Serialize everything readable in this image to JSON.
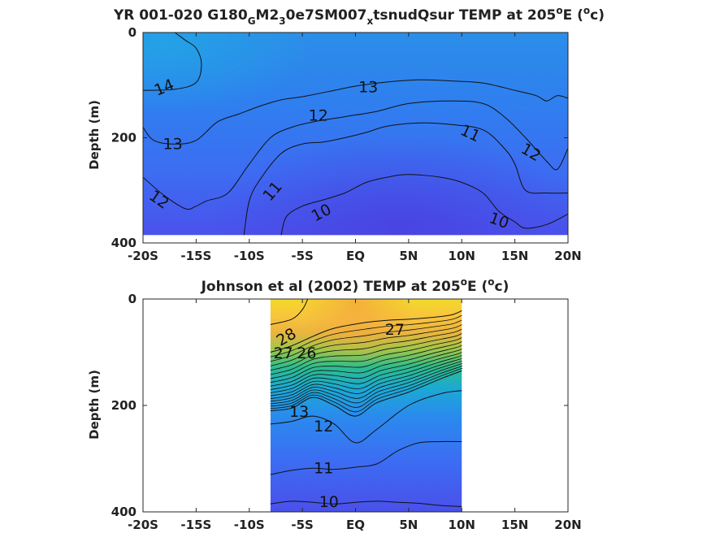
{
  "chart_data": [
    {
      "type": "heatmap",
      "title": {
        "pre": "YR 001-020 G180",
        "sub1": "G",
        "mid1": "M2",
        "sub2": "3",
        "mid2": "0e7SM007",
        "sub3": "x",
        "post1": "tsnudQsur TEMP at 205",
        "sup1": "o",
        "post2": "E (",
        "sup2": "o",
        "post3": "c)"
      },
      "ylabel": "Depth (m)",
      "xlim": [
        -20,
        20
      ],
      "ylim": [
        0,
        400
      ],
      "y_reversed": true,
      "x_ticks": [
        "-20S",
        "-15S",
        "-10S",
        "-5S",
        "EQ",
        "5N",
        "10N",
        "15N",
        "20N"
      ],
      "y_ticks": [
        "0",
        "200",
        "400"
      ],
      "data_extent": {
        "lat": [
          -20,
          20
        ],
        "depth": [
          0,
          385
        ]
      },
      "contours": [
        {
          "level": 14,
          "label": "14",
          "points": [
            [
              -20,
              110
            ],
            [
              -17,
              108
            ],
            [
              -15,
              95
            ],
            [
              -14.5,
              60
            ],
            [
              -15,
              30
            ],
            [
              -16,
              15
            ],
            [
              -17,
              0
            ]
          ]
        },
        {
          "level": 13,
          "label": "13",
          "points": [
            [
              -20,
              180
            ],
            [
              -19,
              205
            ],
            [
              -17,
              212
            ],
            [
              -15,
              205
            ],
            [
              -13,
              170
            ],
            [
              -11,
              155
            ],
            [
              -9,
              140
            ],
            [
              -7,
              128
            ],
            [
              -5,
              122
            ],
            [
              -2,
              110
            ],
            [
              0,
              102
            ],
            [
              3,
              94
            ],
            [
              6,
              90
            ],
            [
              9,
              92
            ],
            [
              12,
              96
            ],
            [
              15,
              110
            ],
            [
              17,
              120
            ],
            [
              18,
              130
            ],
            [
              19,
              120
            ],
            [
              20,
              125
            ]
          ]
        },
        {
          "level": 12,
          "label": "12",
          "points": [
            [
              -20,
              275
            ],
            [
              -18,
              310
            ],
            [
              -16,
              335
            ],
            [
              -15,
              330
            ],
            [
              -14,
              320
            ],
            [
              -12,
              305
            ],
            [
              -10,
              250
            ],
            [
              -8,
              200
            ],
            [
              -6,
              180
            ],
            [
              -4,
              170
            ],
            [
              -1,
              160
            ],
            [
              2,
              150
            ],
            [
              5,
              135
            ],
            [
              9,
              130
            ],
            [
              12,
              135
            ],
            [
              14,
              160
            ],
            [
              16,
              200
            ],
            [
              18,
              245
            ],
            [
              19,
              260
            ],
            [
              20,
              220
            ]
          ]
        },
        {
          "level": 11,
          "label": "11",
          "points": [
            [
              -10.5,
              385
            ],
            [
              -10,
              320
            ],
            [
              -9,
              280
            ],
            [
              -7,
              230
            ],
            [
              -5,
              212
            ],
            [
              -3,
              208
            ],
            [
              -1,
              200
            ],
            [
              1,
              190
            ],
            [
              3,
              178
            ],
            [
              6,
              172
            ],
            [
              9,
              175
            ],
            [
              12,
              185
            ],
            [
              14,
              220
            ],
            [
              15,
              250
            ],
            [
              16,
              300
            ],
            [
              18,
              305
            ],
            [
              20,
              305
            ]
          ]
        },
        {
          "level": 10,
          "label": "10",
          "points": [
            [
              -7,
              385
            ],
            [
              -6.5,
              350
            ],
            [
              -5,
              330
            ],
            [
              -3,
              318
            ],
            [
              -1,
              305
            ],
            [
              1,
              285
            ],
            [
              3,
              275
            ],
            [
              5,
              270
            ],
            [
              8,
              275
            ],
            [
              10,
              285
            ],
            [
              12,
              305
            ],
            [
              13.5,
              340
            ],
            [
              15,
              360
            ],
            [
              16,
              372
            ],
            [
              18,
              365
            ],
            [
              20,
              345
            ]
          ]
        }
      ],
      "contour_labels": [
        {
          "text": "14",
          "at": [
            -18,
            105
          ],
          "angle": -22
        },
        {
          "text": "13",
          "at": [
            1.2,
            104
          ],
          "angle": 0
        },
        {
          "text": "13",
          "at": [
            -17.2,
            212
          ],
          "angle": 0
        },
        {
          "text": "12",
          "at": [
            -3.5,
            158
          ],
          "angle": 0
        },
        {
          "text": "12",
          "at": [
            -18.5,
            318
          ],
          "angle": 35
        },
        {
          "text": "12",
          "at": [
            16.5,
            228
          ],
          "angle": 30
        },
        {
          "text": "11",
          "at": [
            -7.8,
            302
          ],
          "angle": -50
        },
        {
          "text": "11",
          "at": [
            10.8,
            192
          ],
          "angle": 25
        },
        {
          "text": "10",
          "at": [
            -3.2,
            343
          ],
          "angle": -28
        },
        {
          "text": "10",
          "at": [
            13.5,
            358
          ],
          "angle": 20
        }
      ]
    },
    {
      "type": "heatmap",
      "title": {
        "pre": "Johnson et al (2002) TEMP at 205",
        "sup1": "o",
        "post2": "E (",
        "sup2": "o",
        "post3": "c)"
      },
      "ylabel": "Depth (m)",
      "xlim": [
        -20,
        20
      ],
      "ylim": [
        0,
        400
      ],
      "y_reversed": true,
      "x_ticks": [
        "-20S",
        "-15S",
        "-10S",
        "-5S",
        "EQ",
        "5N",
        "10N",
        "15N",
        "20N"
      ],
      "y_ticks": [
        "0",
        "200",
        "400"
      ],
      "data_extent": {
        "lat": [
          -8,
          10
        ],
        "depth": [
          0,
          400
        ]
      },
      "contours": [
        {
          "level": 28,
          "label": "28",
          "points": [
            [
              -8,
              48
            ],
            [
              -6,
              38
            ],
            [
              -5,
              20
            ],
            [
              -4.5,
              0
            ]
          ]
        },
        {
          "level": 27,
          "label": "27",
          "points": [
            [
              -8,
              100
            ],
            [
              -6,
              88
            ],
            [
              -4,
              70
            ],
            [
              -2,
              55
            ],
            [
              1,
              44
            ],
            [
              3,
              40
            ],
            [
              5,
              38
            ],
            [
              7,
              35
            ],
            [
              9,
              30
            ],
            [
              10,
              22
            ]
          ]
        },
        {
          "level": 13,
          "label": "13",
          "points": [
            [
              -8,
              210
            ],
            [
              -6,
              205
            ],
            [
              -4,
              185
            ],
            [
              -2,
              200
            ],
            [
              0,
              220
            ],
            [
              2,
              195
            ],
            [
              5,
              175
            ],
            [
              8,
              150
            ],
            [
              10,
              135
            ]
          ]
        },
        {
          "level": 12,
          "label": "12",
          "points": [
            [
              -8,
              235
            ],
            [
              -6,
              230
            ],
            [
              -4,
              220
            ],
            [
              -2,
              235
            ],
            [
              0,
              270
            ],
            [
              2,
              245
            ],
            [
              5,
              200
            ],
            [
              8,
              178
            ],
            [
              10,
              172
            ]
          ]
        },
        {
          "level": 11,
          "label": "11",
          "points": [
            [
              -8,
              330
            ],
            [
              -6,
              322
            ],
            [
              -4,
              318
            ],
            [
              -2,
              320
            ],
            [
              0,
              316
            ],
            [
              2,
              310
            ],
            [
              4,
              285
            ],
            [
              6,
              270
            ],
            [
              8,
              268
            ],
            [
              10,
              268
            ]
          ]
        },
        {
          "level": 10,
          "label": "10",
          "points": [
            [
              -8,
              385
            ],
            [
              -6,
              380
            ],
            [
              -4,
              382
            ],
            [
              -2,
              385
            ],
            [
              0,
              382
            ],
            [
              2,
              380
            ],
            [
              4,
              382
            ],
            [
              6,
              384
            ],
            [
              8,
              388
            ],
            [
              10,
              390
            ]
          ]
        }
      ],
      "thermocline_lines": 16,
      "contour_labels": [
        {
          "text": "28",
          "at": [
            -6.5,
            72
          ],
          "angle": -30
        },
        {
          "text": "27",
          "at": [
            -6.8,
            102
          ],
          "angle": 0
        },
        {
          "text": "27",
          "at": [
            3.7,
            58
          ],
          "angle": 0
        },
        {
          "text": "26",
          "at": [
            -4.6,
            102
          ],
          "angle": 0
        },
        {
          "text": "13",
          "at": [
            -5.3,
            212
          ],
          "angle": 0
        },
        {
          "text": "12",
          "at": [
            -3,
            240
          ],
          "angle": 0
        },
        {
          "text": "11",
          "at": [
            -3,
            318
          ],
          "angle": 0
        },
        {
          "text": "10",
          "at": [
            -2.5,
            382
          ],
          "angle": 0
        }
      ]
    }
  ]
}
